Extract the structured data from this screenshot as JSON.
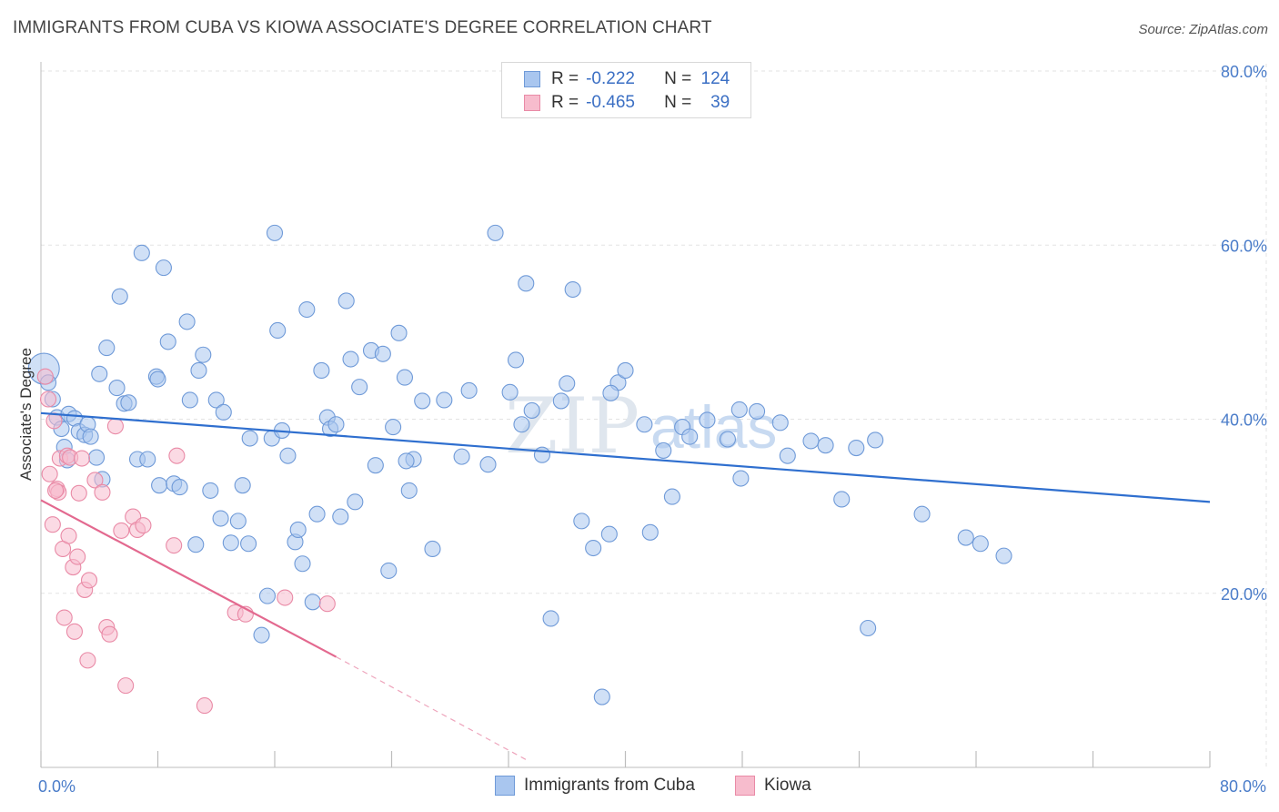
{
  "title": "IMMIGRANTS FROM CUBA VS KIOWA ASSOCIATE'S DEGREE CORRELATION CHART",
  "source": "Source: ZipAtlas.com",
  "watermark": {
    "zip": "ZIP",
    "atlas": "atlas"
  },
  "legend": {
    "rows": [
      {
        "r_label": "R =",
        "r_value": "-0.222",
        "n_label": "N =",
        "n_value": "124",
        "color": "#a9c6ef",
        "border": "#6f9ad8"
      },
      {
        "r_label": "R =",
        "r_value": "-0.465",
        "n_label": "N =",
        "n_value": "39",
        "color": "#f7bccd",
        "border": "#e98aa6"
      }
    ]
  },
  "bottom_legend": [
    {
      "label": "Immigrants from Cuba",
      "color": "#a9c6ef",
      "border": "#6f9ad8"
    },
    {
      "label": "Kiowa",
      "color": "#f7bccd",
      "border": "#e98aa6"
    }
  ],
  "chart_data": {
    "type": "scatter",
    "title": "IMMIGRANTS FROM CUBA VS KIOWA ASSOCIATE'S DEGREE CORRELATION CHART",
    "xlabel": "",
    "ylabel": "Associate's Degree",
    "xlim": [
      0,
      80
    ],
    "ylim": [
      0,
      80
    ],
    "x_tick_labels": [
      "0.0%",
      "80.0%"
    ],
    "y_ticks": [
      20,
      40,
      60,
      80
    ],
    "y_tick_labels": [
      "20.0%",
      "40.0%",
      "60.0%",
      "80.0%"
    ],
    "grid": true,
    "legend_position": "top-center",
    "series": [
      {
        "name": "Immigrants from Cuba",
        "color": "#a9c6ef",
        "stroke": "#6f9ad8",
        "trend": {
          "x": [
            0,
            80
          ],
          "y": [
            40.7,
            30.5
          ],
          "color": "#2f6fcf"
        },
        "points": [
          [
            0.2,
            45.8
          ],
          [
            0.5,
            44.2
          ],
          [
            0.8,
            42.3
          ],
          [
            1.1,
            40.2
          ],
          [
            1.4,
            38.9
          ],
          [
            1.6,
            36.8
          ],
          [
            1.8,
            35.3
          ],
          [
            1.9,
            40.6
          ],
          [
            2.3,
            40.1
          ],
          [
            2.6,
            38.6
          ],
          [
            3.0,
            38.2
          ],
          [
            3.2,
            39.4
          ],
          [
            3.4,
            38.0
          ],
          [
            3.8,
            35.6
          ],
          [
            4.0,
            45.2
          ],
          [
            4.2,
            33.1
          ],
          [
            4.5,
            48.2
          ],
          [
            5.2,
            43.6
          ],
          [
            5.4,
            54.1
          ],
          [
            5.7,
            41.8
          ],
          [
            6.0,
            41.9
          ],
          [
            6.6,
            35.4
          ],
          [
            6.9,
            59.1
          ],
          [
            7.3,
            35.4
          ],
          [
            7.9,
            44.9
          ],
          [
            8.1,
            32.4
          ],
          [
            8.4,
            57.4
          ],
          [
            8.7,
            48.9
          ],
          [
            9.1,
            32.6
          ],
          [
            9.5,
            32.2
          ],
          [
            10.0,
            51.2
          ],
          [
            10.2,
            42.2
          ],
          [
            10.6,
            25.6
          ],
          [
            10.8,
            45.6
          ],
          [
            11.1,
            47.4
          ],
          [
            11.6,
            31.8
          ],
          [
            12.0,
            42.2
          ],
          [
            12.3,
            28.6
          ],
          [
            12.5,
            40.8
          ],
          [
            13.0,
            25.8
          ],
          [
            13.5,
            28.3
          ],
          [
            13.8,
            32.4
          ],
          [
            14.2,
            25.7
          ],
          [
            14.3,
            37.8
          ],
          [
            15.1,
            15.2
          ],
          [
            15.5,
            19.7
          ],
          [
            15.8,
            37.8
          ],
          [
            16.0,
            61.4
          ],
          [
            16.2,
            50.2
          ],
          [
            16.5,
            38.7
          ],
          [
            16.9,
            35.8
          ],
          [
            17.4,
            25.9
          ],
          [
            17.6,
            27.3
          ],
          [
            17.9,
            23.4
          ],
          [
            18.2,
            52.6
          ],
          [
            18.6,
            19.0
          ],
          [
            18.9,
            29.1
          ],
          [
            19.2,
            45.6
          ],
          [
            19.6,
            40.2
          ],
          [
            19.8,
            38.9
          ],
          [
            20.2,
            39.4
          ],
          [
            20.5,
            28.8
          ],
          [
            20.9,
            53.6
          ],
          [
            21.2,
            46.9
          ],
          [
            21.5,
            30.5
          ],
          [
            21.8,
            43.7
          ],
          [
            22.6,
            47.9
          ],
          [
            22.9,
            34.7
          ],
          [
            23.4,
            47.5
          ],
          [
            23.8,
            22.6
          ],
          [
            24.1,
            39.1
          ],
          [
            24.5,
            49.9
          ],
          [
            24.9,
            44.8
          ],
          [
            25.2,
            31.8
          ],
          [
            25.5,
            35.4
          ],
          [
            26.1,
            42.1
          ],
          [
            26.8,
            25.1
          ],
          [
            27.6,
            42.2
          ],
          [
            28.8,
            35.7
          ],
          [
            29.3,
            43.3
          ],
          [
            30.6,
            34.8
          ],
          [
            31.1,
            61.4
          ],
          [
            32.1,
            43.1
          ],
          [
            32.5,
            46.8
          ],
          [
            32.9,
            39.4
          ],
          [
            33.2,
            55.6
          ],
          [
            33.6,
            41.0
          ],
          [
            34.3,
            35.9
          ],
          [
            34.9,
            17.1
          ],
          [
            35.6,
            42.1
          ],
          [
            36.0,
            44.1
          ],
          [
            36.4,
            54.9
          ],
          [
            37.0,
            28.3
          ],
          [
            37.8,
            25.2
          ],
          [
            38.4,
            8.1
          ],
          [
            38.9,
            26.8
          ],
          [
            39.5,
            44.2
          ],
          [
            40.0,
            45.6
          ],
          [
            41.3,
            39.4
          ],
          [
            41.7,
            27.0
          ],
          [
            42.6,
            36.4
          ],
          [
            43.2,
            31.1
          ],
          [
            43.9,
            39.1
          ],
          [
            44.4,
            38.0
          ],
          [
            45.6,
            39.9
          ],
          [
            47.0,
            37.7
          ],
          [
            47.8,
            41.1
          ],
          [
            47.9,
            33.2
          ],
          [
            49.0,
            40.9
          ],
          [
            50.6,
            39.6
          ],
          [
            51.1,
            35.8
          ],
          [
            52.7,
            37.5
          ],
          [
            53.7,
            37.0
          ],
          [
            54.8,
            30.8
          ],
          [
            55.8,
            36.7
          ],
          [
            56.6,
            16.0
          ],
          [
            57.1,
            37.6
          ],
          [
            60.3,
            29.1
          ],
          [
            63.3,
            26.4
          ],
          [
            64.3,
            25.7
          ],
          [
            65.9,
            24.3
          ],
          [
            8.0,
            44.6
          ],
          [
            25.0,
            35.2
          ],
          [
            39.0,
            43.0
          ]
        ]
      },
      {
        "name": "Kiowa",
        "color": "#f7bccd",
        "stroke": "#e98aa6",
        "trend": {
          "x": [
            0,
            20.2
          ],
          "y": [
            30.7,
            12.7
          ],
          "color": "#e3698f",
          "dash_to": [
            33.3,
            0.8
          ]
        },
        "points": [
          [
            0.3,
            44.9
          ],
          [
            0.5,
            42.3
          ],
          [
            0.6,
            33.7
          ],
          [
            0.8,
            27.9
          ],
          [
            0.9,
            39.8
          ],
          [
            1.1,
            32.0
          ],
          [
            1.2,
            31.6
          ],
          [
            1.3,
            35.5
          ],
          [
            1.5,
            25.1
          ],
          [
            1.6,
            17.2
          ],
          [
            1.8,
            35.8
          ],
          [
            1.9,
            26.6
          ],
          [
            2.0,
            35.6
          ],
          [
            2.2,
            23.0
          ],
          [
            2.3,
            15.6
          ],
          [
            2.5,
            24.2
          ],
          [
            2.6,
            31.5
          ],
          [
            2.8,
            35.5
          ],
          [
            3.0,
            20.4
          ],
          [
            3.2,
            12.3
          ],
          [
            3.3,
            21.5
          ],
          [
            3.7,
            33.0
          ],
          [
            4.2,
            31.6
          ],
          [
            4.5,
            16.1
          ],
          [
            4.7,
            15.3
          ],
          [
            5.1,
            39.2
          ],
          [
            5.5,
            27.2
          ],
          [
            5.8,
            9.4
          ],
          [
            6.3,
            28.8
          ],
          [
            6.6,
            27.3
          ],
          [
            7.0,
            27.8
          ],
          [
            9.1,
            25.5
          ],
          [
            9.3,
            35.8
          ],
          [
            11.2,
            7.1
          ],
          [
            13.3,
            17.8
          ],
          [
            14.0,
            17.6
          ],
          [
            16.7,
            19.5
          ],
          [
            19.6,
            18.8
          ],
          [
            1.0,
            31.8
          ]
        ]
      }
    ]
  }
}
